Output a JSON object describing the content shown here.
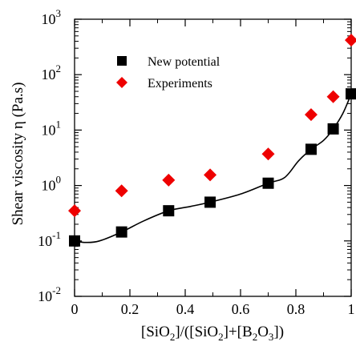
{
  "chart_data": {
    "type": "scatter",
    "x_label": {
      "pre": "[SiO",
      "s1": "2",
      "mid1": "]/([SiO",
      "s2": "2",
      "mid2": "]+[B",
      "s3": "2",
      "mid3": "O",
      "s4": "3",
      "post": "])"
    },
    "y_label": "Shear viscosity η (Pa.s)",
    "xlim": [
      0,
      1
    ],
    "ylim": [
      0.01,
      1000
    ],
    "y_scale": "log",
    "x_ticks": [
      "0",
      "0.2",
      "0.4",
      "0.6",
      "0.8",
      "1"
    ],
    "y_tick_exponents": [
      "-2",
      "-1",
      "0",
      "1",
      "2",
      "3"
    ],
    "y_tick_base": "10",
    "legend_position": "upper-left",
    "series": [
      {
        "name": "New potential",
        "marker": "square",
        "color": "#000000",
        "x": [
          0,
          0.17,
          0.34,
          0.49,
          0.7,
          0.855,
          0.935,
          1.0
        ],
        "y": [
          0.1,
          0.145,
          0.35,
          0.5,
          1.1,
          4.5,
          10.5,
          45
        ]
      },
      {
        "name": "Experiments",
        "marker": "diamond",
        "color": "#ee0000",
        "x": [
          0,
          0.17,
          0.34,
          0.49,
          0.7,
          0.855,
          0.935,
          1.0
        ],
        "y": [
          0.35,
          0.8,
          1.25,
          1.55,
          3.7,
          19,
          40,
          420
        ]
      }
    ],
    "fit_curve": {
      "color": "#000000",
      "x": [
        0,
        0.04,
        0.09,
        0.17,
        0.25,
        0.34,
        0.42,
        0.49,
        0.6,
        0.7,
        0.76,
        0.81,
        0.855,
        0.9,
        0.935,
        0.97,
        1.0
      ],
      "y": [
        0.1,
        0.094,
        0.1,
        0.145,
        0.23,
        0.35,
        0.42,
        0.5,
        0.7,
        1.1,
        1.4,
        2.8,
        4.5,
        6.5,
        10.5,
        20,
        45
      ]
    }
  }
}
